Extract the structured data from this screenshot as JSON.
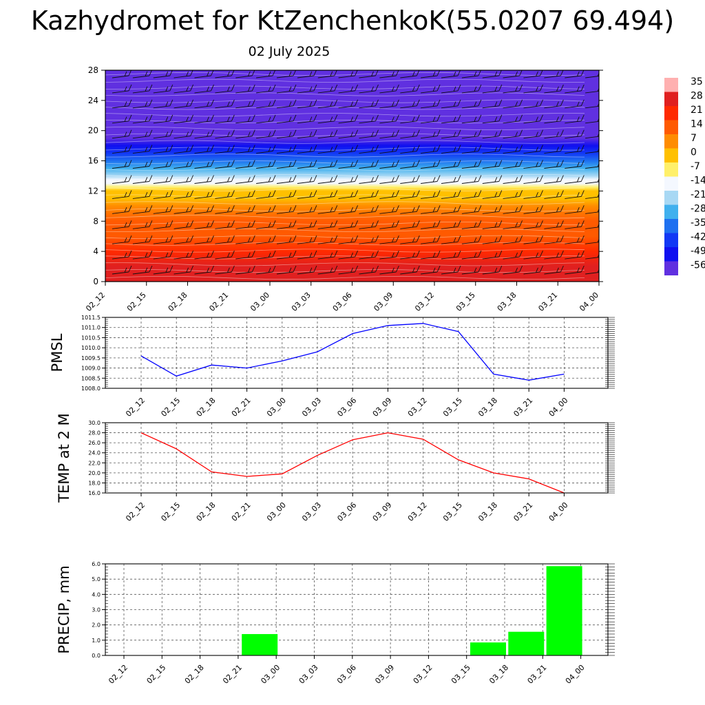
{
  "header": {
    "title": "Kazhydromet for KtZenchenkoK(55.0207 69.494)",
    "date": "02 July 2025"
  },
  "chart_data": [
    {
      "type": "heatmap",
      "id": "cross-section",
      "yticks": [
        "0",
        "4",
        "8",
        "12",
        "16",
        "20",
        "24",
        "28"
      ],
      "ylim": [
        0,
        28
      ],
      "xticks": [
        "02_12",
        "02_15",
        "02_18",
        "02_21",
        "03_00",
        "03_03",
        "03_06",
        "03_09",
        "03_12",
        "03_15",
        "03_18",
        "03_21",
        "04_00"
      ],
      "colorbar": {
        "labels": [
          "35",
          "28",
          "21",
          "14",
          "7",
          "0",
          "-7",
          "-14",
          "-21",
          "-28",
          "-35",
          "-42",
          "-49",
          "-56"
        ],
        "colors": [
          "#ffb0b0",
          "#e02020",
          "#ff2a00",
          "#ff5a00",
          "#ff8c00",
          "#ffc000",
          "#fff06a",
          "#f4f8ff",
          "#a8d8f4",
          "#40b0ee",
          "#1e70f0",
          "#1238f5",
          "#1010f0",
          "#6030e0"
        ]
      },
      "temperature_profile": {
        "heights": [
          0,
          2,
          4,
          6,
          8,
          10,
          11,
          12,
          12.5,
          13,
          13.5,
          14,
          15,
          16,
          17,
          18,
          19,
          20,
          24,
          28
        ],
        "values": [
          30,
          28,
          24,
          20,
          14,
          7,
          3,
          0,
          -4,
          -8,
          -12,
          -16,
          -24,
          -32,
          -40,
          -46,
          -50,
          -54,
          -56,
          -55
        ]
      }
    },
    {
      "type": "line",
      "id": "pmsl",
      "ylabel": "PMSL",
      "ylim": [
        1008.0,
        1011.5
      ],
      "yticks": [
        "1008.0",
        "1008.5",
        "1009.0",
        "1009.5",
        "1010.0",
        "1010.5",
        "1011.0",
        "1011.5"
      ],
      "categories": [
        "02_12",
        "02_15",
        "02_18",
        "02_21",
        "03_00",
        "03_03",
        "03_06",
        "03_09",
        "03_12",
        "03_15",
        "03_18",
        "03_21",
        "04_00"
      ],
      "values": [
        1009.6,
        1008.6,
        1009.15,
        1009.0,
        1009.35,
        1009.8,
        1010.7,
        1011.1,
        1011.2,
        1010.8,
        1008.7,
        1008.4,
        1008.7
      ],
      "color": "#0000ff"
    },
    {
      "type": "line",
      "id": "temp2m",
      "ylabel": "TEMP at 2 M",
      "ylim": [
        16.0,
        30.0
      ],
      "yticks": [
        "16.0",
        "18.0",
        "20.0",
        "22.0",
        "24.0",
        "26.0",
        "28.0",
        "30.0"
      ],
      "categories": [
        "02_12",
        "02_15",
        "02_18",
        "02_21",
        "03_00",
        "03_03",
        "03_06",
        "03_09",
        "03_12",
        "03_15",
        "03_18",
        "03_21",
        "04_00"
      ],
      "values": [
        28.0,
        24.8,
        20.2,
        19.3,
        19.8,
        23.5,
        26.6,
        28.0,
        26.7,
        22.6,
        20.0,
        18.8,
        16.0
      ],
      "color": "#ff0000"
    },
    {
      "type": "bar",
      "id": "precip",
      "ylabel": "PRECIP, mm",
      "ylim": [
        0.0,
        6.0
      ],
      "yticks": [
        "0.0",
        "1.0",
        "2.0",
        "3.0",
        "4.0",
        "5.0",
        "6.0"
      ],
      "categories": [
        "02_12",
        "02_15",
        "02_18",
        "02_21",
        "03_00",
        "03_03",
        "03_06",
        "03_09",
        "03_12",
        "03_15",
        "03_18",
        "03_21",
        "04_00"
      ],
      "values": [
        0,
        0,
        0,
        0,
        1.4,
        0,
        0,
        0,
        0,
        0,
        0.85,
        1.55,
        5.85
      ],
      "color": "#00ff00"
    }
  ]
}
